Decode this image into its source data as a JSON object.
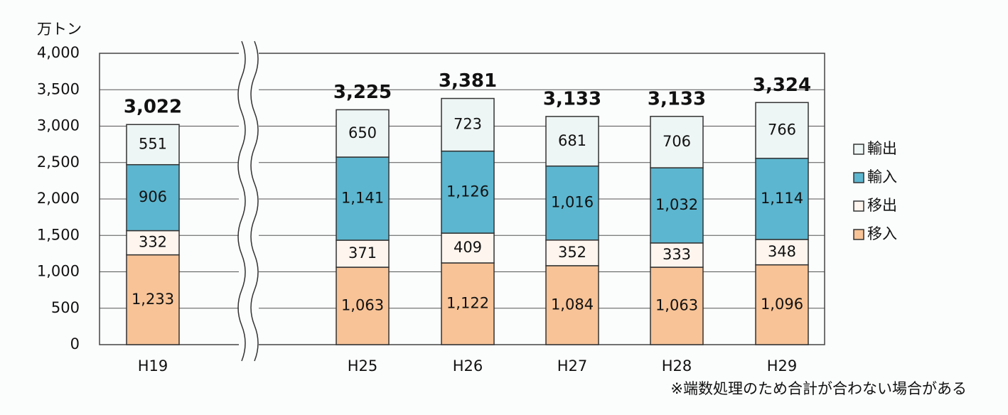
{
  "chart_data": {
    "type": "stacked-bar",
    "y_axis_label": "万トン",
    "categories": [
      "H19",
      "H25",
      "H26",
      "H27",
      "H28",
      "H29"
    ],
    "series": [
      {
        "name": "移入",
        "color": "#f7c397",
        "values": [
          1233,
          1063,
          1122,
          1084,
          1063,
          1096
        ],
        "value_labels": [
          "1,233",
          "1,063",
          "1,122",
          "1,084",
          "1,063",
          "1,096"
        ]
      },
      {
        "name": "移出",
        "color": "#fdf5ee",
        "values": [
          332,
          371,
          409,
          352,
          333,
          348
        ]
      },
      {
        "name": "輸入",
        "color": "#5cb6cf",
        "values": [
          906,
          1141,
          1126,
          1016,
          1032,
          1114
        ],
        "value_labels": [
          "906",
          "1,141",
          "1,126",
          "1,016",
          "1,032",
          "1,114"
        ]
      },
      {
        "name": "輸出",
        "color": "#eef6f5",
        "values": [
          551,
          650,
          723,
          681,
          706,
          766
        ]
      }
    ],
    "totals": {
      "values": [
        3022,
        3225,
        3381,
        3133,
        3133,
        3324
      ],
      "value_labels": [
        "3,022",
        "3,225",
        "3,381",
        "3,133",
        "3,133",
        "3,324"
      ]
    },
    "ylim": [
      0,
      4000
    ],
    "yticks": [
      0,
      500,
      {
        "value": 1000,
        "label": "1,000"
      },
      {
        "value": 1500,
        "label": "1,500"
      },
      {
        "value": 2000,
        "label": "2,000"
      },
      {
        "value": 2500,
        "label": "2,500"
      },
      {
        "value": 3000,
        "label": "3,000"
      },
      {
        "value": 3500,
        "label": "3,500"
      },
      {
        "value": 4000,
        "label": "4,000"
      }
    ],
    "grid": true,
    "legend": "right",
    "note": "※端数処理のため合計が合わない場合がある"
  }
}
